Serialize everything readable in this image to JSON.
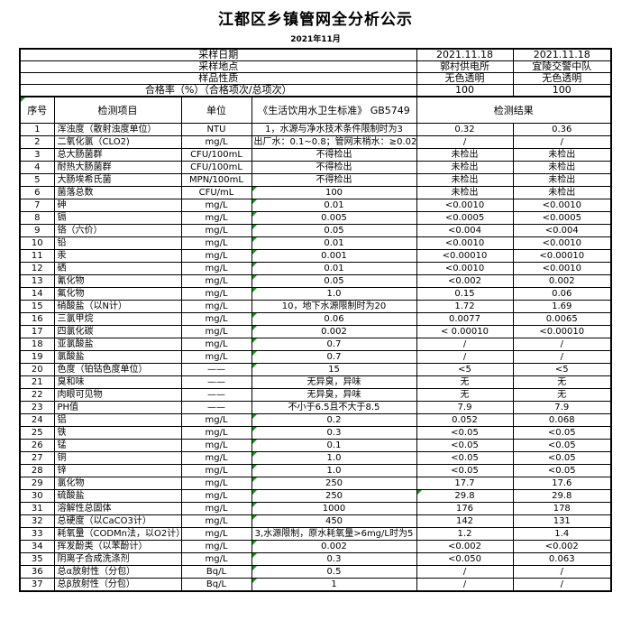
{
  "title": "江都区乡镇管网全分析公示",
  "subtitle": "2021年11月",
  "info_rows": [
    {
      "label": "采样日期",
      "v1": "2021.11.18",
      "v2": "2021.11.18"
    },
    {
      "label": "采样地点",
      "v1": "郭村供电所",
      "v2": "宜陵交警中队"
    },
    {
      "label": "样品性质",
      "v1": "无色透明",
      "v2": "无色透明"
    },
    {
      "label": "合格率（%）（合格项次/总项次）",
      "v1": "100",
      "v2": "100"
    }
  ],
  "table": {
    "columns": {
      "no": "序号",
      "item": "检测项目",
      "unit": "单位",
      "standard": "《生活饮用水卫生标准》 GB5749",
      "result": "检测结果"
    },
    "rows": [
      {
        "no": "1",
        "item": "浑浊度（散射浊度单位）",
        "unit": "NTU",
        "standard": "1，水源与净水技术条件限制时为3",
        "r1": "0.32",
        "r2": "0.36"
      },
      {
        "no": "2",
        "item": "二氧化氯（CLO2)",
        "unit": "mg/L",
        "standard": "出厂水：0.1~0.8；管网末梢水：≥0.02",
        "r1": "/",
        "r2": "/"
      },
      {
        "no": "3",
        "item": "总大肠菌群",
        "unit": "CFU/100mL",
        "standard": "不得检出",
        "r1": "未检出",
        "r2": "未检出"
      },
      {
        "no": "4",
        "item": "耐热大肠菌群",
        "unit": "CFU/100mL",
        "standard": "不得检出",
        "r1": "未检出",
        "r2": "未检出"
      },
      {
        "no": "5",
        "item": "大肠埃希氏菌",
        "unit": "MPN/100mL",
        "standard": "不得检出",
        "r1": "未检出",
        "r2": "未检出"
      },
      {
        "no": "6",
        "item": "菌落总数",
        "unit": "CFU/mL",
        "standard": "100",
        "r1": "未检出",
        "r2": "未检出"
      },
      {
        "no": "7",
        "item": "砷",
        "unit": "mg/L",
        "standard": "0.01",
        "r1": "<0.0010",
        "r2": "<0.0010"
      },
      {
        "no": "8",
        "item": "镉",
        "unit": "mg/L",
        "standard": "0.005",
        "r1": "<0.0005",
        "r2": "<0.0005"
      },
      {
        "no": "9",
        "item": "铬（六价）",
        "unit": "mg/L",
        "standard": "0.05",
        "r1": "<0.004",
        "r2": "<0.004"
      },
      {
        "no": "10",
        "item": "铅",
        "unit": "mg/L",
        "standard": "0.01",
        "r1": "<0.0010",
        "r2": "<0.0010"
      },
      {
        "no": "11",
        "item": "汞",
        "unit": "mg/L",
        "standard": "0.001",
        "r1": "<0.00010",
        "r2": "<0.00010"
      },
      {
        "no": "12",
        "item": "硒",
        "unit": "mg/L",
        "standard": "0.01",
        "r1": "<0.0010",
        "r2": "<0.0010"
      },
      {
        "no": "13",
        "item": "氰化物",
        "unit": "mg/L",
        "standard": "0.05",
        "r1": "<0.002",
        "r2": "0.002"
      },
      {
        "no": "14",
        "item": "氟化物",
        "unit": "mg/L",
        "standard": "1.0",
        "r1": "0.15",
        "r2": "0.06"
      },
      {
        "no": "15",
        "item": "硝酸盐（以N计）",
        "unit": "mg/L",
        "standard": "10，地下水源限制时为20",
        "r1": "1.72",
        "r2": "1.69"
      },
      {
        "no": "16",
        "item": "三氯甲烷",
        "unit": "mg/L",
        "standard": "0.06",
        "r1": "0.0077",
        "r2": "0.0065"
      },
      {
        "no": "17",
        "item": "四氯化碳",
        "unit": "mg/L",
        "standard": "0.002",
        "r1": "< 0.00010",
        "r2": "<0.00010"
      },
      {
        "no": "18",
        "item": "亚氯酸盐",
        "unit": "mg/L",
        "standard": "0.7",
        "r1": "/",
        "r2": "/"
      },
      {
        "no": "19",
        "item": "氯酸盐",
        "unit": "mg/L",
        "standard": "0.7",
        "r1": "/",
        "r2": "/"
      },
      {
        "no": "20",
        "item": "色度（铂钴色度单位）",
        "unit": "——",
        "standard": "15",
        "r1": "<5",
        "r2": "<5"
      },
      {
        "no": "21",
        "item": "臭和味",
        "unit": "——",
        "standard": "无异臭，异味",
        "r1": "无",
        "r2": "无"
      },
      {
        "no": "22",
        "item": "肉眼可见物",
        "unit": "——",
        "standard": "无异臭，异味",
        "r1": "无",
        "r2": "无"
      },
      {
        "no": "23",
        "item": "PH值",
        "unit": "——",
        "standard": "不小于6.5且不大于8.5",
        "r1": "7.9",
        "r2": "7.9"
      },
      {
        "no": "24",
        "item": "铝",
        "unit": "mg/L",
        "standard": "0.2",
        "r1": "0.052",
        "r2": "0.068"
      },
      {
        "no": "25",
        "item": "铁",
        "unit": "mg/L",
        "standard": "0.3",
        "r1": "<0.05",
        "r2": "<0.05"
      },
      {
        "no": "26",
        "item": "锰",
        "unit": "mg/L",
        "standard": "0.1",
        "r1": "<0.05",
        "r2": "<0.05"
      },
      {
        "no": "27",
        "item": "铜",
        "unit": "mg/L",
        "standard": "1.0",
        "r1": "<0.05",
        "r2": "<0.05"
      },
      {
        "no": "28",
        "item": "锌",
        "unit": "mg/L",
        "standard": "1.0",
        "r1": "<0.05",
        "r2": "<0.05"
      },
      {
        "no": "29",
        "item": "氯化物",
        "unit": "mg/L",
        "standard": "250",
        "r1": "17.7",
        "r2": "17.6"
      },
      {
        "no": "30",
        "item": "硫酸盐",
        "unit": "mg/L",
        "standard": "250",
        "r1": "29.8",
        "r2": "29.8"
      },
      {
        "no": "31",
        "item": "溶解性总固体",
        "unit": "mg/L",
        "standard": "1000",
        "r1": "176",
        "r2": "178"
      },
      {
        "no": "32",
        "item": "总硬度（以CaCO3计）",
        "unit": "mg/L",
        "standard": "450",
        "r1": "142",
        "r2": "131"
      },
      {
        "no": "33",
        "item": "耗氧量（CODMn法，以O2计）",
        "unit": "mg/L",
        "standard": "3,水源限制，原水耗氧量>6mg/L时为5",
        "r1": "1.2",
        "r2": "1.4"
      },
      {
        "no": "34",
        "item": "挥发酚类（以苯酚计）",
        "unit": "mg/L",
        "standard": "0.002",
        "r1": "<0.002",
        "r2": "<0.002"
      },
      {
        "no": "35",
        "item": "阴离子合成洗涤剂",
        "unit": "mg/L",
        "standard": "0.3",
        "r1": "<0.050",
        "r2": "0.063"
      },
      {
        "no": "36",
        "item": "总α放射性（分包）",
        "unit": "Bq/L",
        "standard": "0.5",
        "r1": "/",
        "r2": "/"
      },
      {
        "no": "37",
        "item": "总β放射性（分包）",
        "unit": "Bq/L",
        "standard": "1",
        "r1": "/",
        "r2": "/"
      }
    ],
    "flagged_standard_rows": [
      6,
      7,
      8,
      9,
      10,
      11,
      12,
      13,
      14,
      16,
      17,
      18,
      19,
      20,
      24,
      25,
      26,
      27,
      28,
      29,
      30,
      31,
      32,
      34,
      35,
      36,
      37
    ],
    "flagged_result1_rows": [
      30
    ],
    "header_no_cell_flag": true
  },
  "colors": {
    "flag_green": "#0f9b0f",
    "border": "#000000",
    "text": "#000000",
    "background": "#ffffff"
  }
}
